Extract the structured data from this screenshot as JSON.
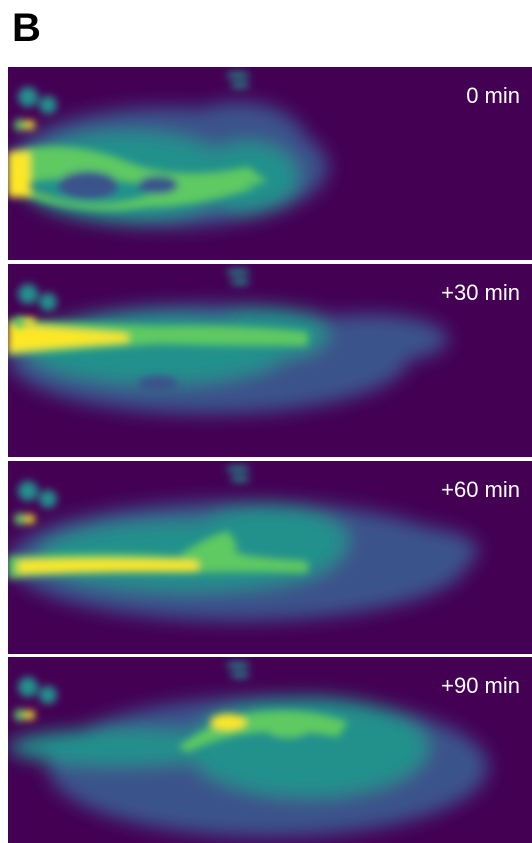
{
  "figure_label": "B",
  "colormap": [
    "#440154",
    "#3b528b",
    "#21918c",
    "#5ec962",
    "#fde725"
  ],
  "panels": [
    {
      "time_label": "0 min"
    },
    {
      "time_label": "+30 min"
    },
    {
      "time_label": "+60 min"
    },
    {
      "time_label": "+90 min"
    }
  ]
}
